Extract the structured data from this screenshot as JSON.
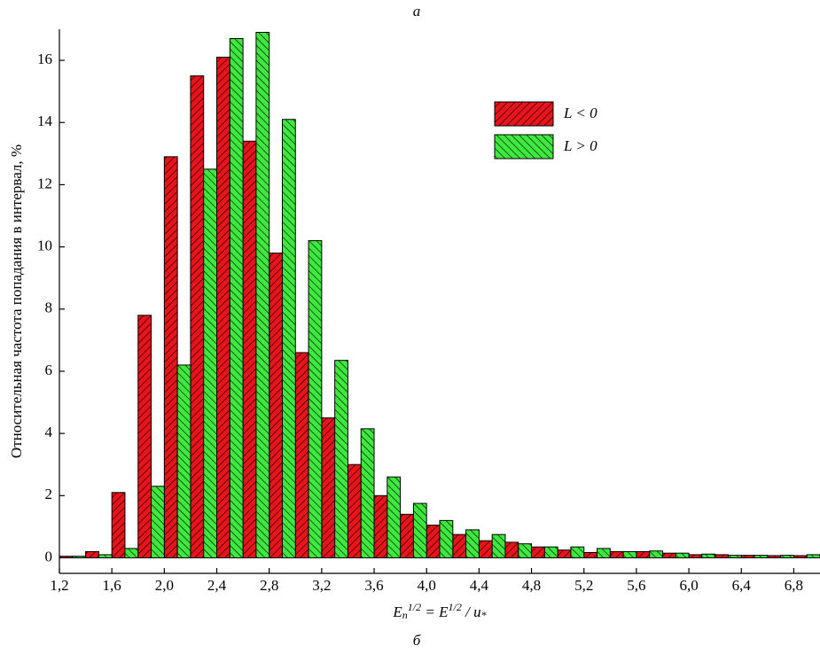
{
  "chart_data": {
    "type": "histogram",
    "title": "а",
    "caption": "б",
    "ylabel": "Относительная частота попадания в интервал, %",
    "xlabel": [
      "E",
      "n",
      "1/2",
      " = E",
      "1/2",
      " / u",
      "*"
    ],
    "bins": [
      1.2,
      1.4,
      1.6,
      1.8,
      2.0,
      2.2,
      2.4,
      2.6,
      2.8,
      3.0,
      3.2,
      3.4,
      3.6,
      3.8,
      4.0,
      4.2,
      4.4,
      4.6,
      4.8,
      5.0,
      5.2,
      5.4,
      5.6,
      5.8,
      6.0,
      6.2,
      6.4,
      6.6,
      6.8,
      7.0
    ],
    "series": [
      {
        "name": "L < 0",
        "color": "#e8141c",
        "values": [
          0.05,
          0.2,
          2.1,
          7.8,
          12.9,
          15.5,
          16.1,
          13.4,
          9.8,
          6.6,
          4.5,
          3.0,
          2.0,
          1.4,
          1.05,
          0.75,
          0.55,
          0.5,
          0.35,
          0.25,
          0.17,
          0.2,
          0.2,
          0.15,
          0.1,
          0.1,
          0.08,
          0.07,
          0.07
        ]
      },
      {
        "name": "L > 0",
        "color": "#3ee83e",
        "values": [
          0.05,
          0.1,
          0.3,
          2.3,
          6.2,
          12.5,
          16.7,
          16.9,
          14.1,
          10.2,
          6.35,
          4.15,
          2.6,
          1.75,
          1.2,
          0.9,
          0.75,
          0.45,
          0.35,
          0.35,
          0.3,
          0.2,
          0.22,
          0.15,
          0.12,
          0.08,
          0.08,
          0.08,
          0.1
        ]
      }
    ],
    "xlim": [
      1.2,
      7.0
    ],
    "xticks": [
      {
        "value": 1.2,
        "label": "1,2"
      },
      {
        "value": 1.6,
        "label": "1,6"
      },
      {
        "value": 2.0,
        "label": "2,0"
      },
      {
        "value": 2.4,
        "label": "2,4"
      },
      {
        "value": 2.8,
        "label": "2,8"
      },
      {
        "value": 3.2,
        "label": "3,2"
      },
      {
        "value": 3.6,
        "label": "3,6"
      },
      {
        "value": 4.0,
        "label": "4,0"
      },
      {
        "value": 4.4,
        "label": "4,4"
      },
      {
        "value": 4.8,
        "label": "4,8"
      },
      {
        "value": 5.2,
        "label": "5,2"
      },
      {
        "value": 5.6,
        "label": "5,6"
      },
      {
        "value": 6.0,
        "label": "6,0"
      },
      {
        "value": 6.4,
        "label": "6,4"
      },
      {
        "value": 6.8,
        "label": "6,8"
      }
    ],
    "ylim": [
      -0.5,
      17
    ],
    "yticks": [
      0,
      2,
      4,
      6,
      8,
      10,
      12,
      14,
      16
    ],
    "hatched": true
  }
}
